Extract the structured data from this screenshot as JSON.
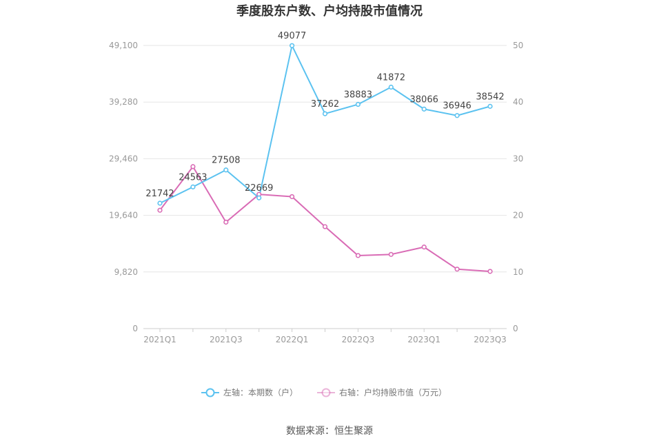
{
  "chart_data": {
    "type": "line",
    "title": "季度股东户数、户均持股市值情况",
    "categories": [
      "2021Q1",
      "2021Q2",
      "2021Q3",
      "2021Q4",
      "2022Q1",
      "2022Q2",
      "2022Q3",
      "2022Q4",
      "2023Q1",
      "2023Q2",
      "2023Q3"
    ],
    "x_tick_labels": [
      "2021Q1",
      "2021Q3",
      "2022Q1",
      "2022Q3",
      "2023Q1",
      "2023Q3"
    ],
    "left_axis": {
      "ylim": [
        0,
        49100
      ],
      "ticks": [
        "0",
        "9,820",
        "19,640",
        "29,460",
        "39,280",
        "49,100"
      ]
    },
    "right_axis": {
      "ylim": [
        0,
        50
      ],
      "ticks": [
        "0",
        "10",
        "20",
        "30",
        "40",
        "50"
      ]
    },
    "series": [
      {
        "name": "左轴：本期数（户）",
        "axis": "left",
        "color": "#5bc2f0",
        "values": [
          21742,
          24563,
          27508,
          22669,
          49077,
          37262,
          38883,
          41872,
          38066,
          36946,
          38542
        ],
        "labels": [
          "21742",
          "24563",
          "27508",
          "22669",
          "49077",
          "37262",
          "38883",
          "41872",
          "38066",
          "36946",
          "38542"
        ]
      },
      {
        "name": "右轴：户均持股市值（万元）",
        "axis": "right",
        "color": "#d96bb5",
        "values": [
          20.9,
          28.6,
          18.8,
          23.7,
          23.3,
          18.0,
          12.9,
          13.1,
          14.4,
          10.5,
          10.1
        ]
      }
    ],
    "grid": true,
    "legend_position": "bottom"
  },
  "source": "数据来源：恒生聚源"
}
